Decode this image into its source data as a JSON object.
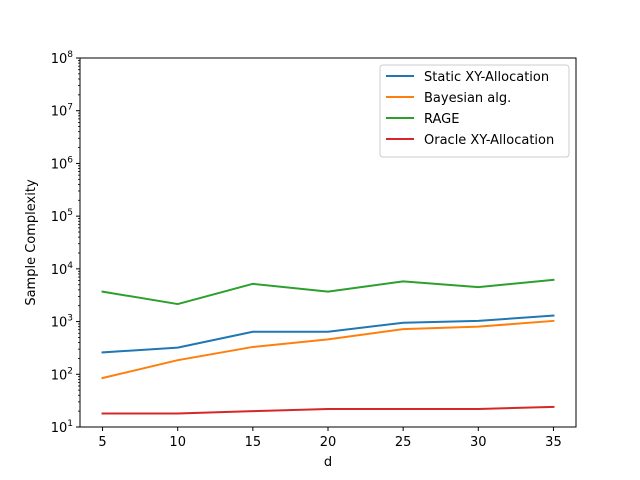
{
  "chart_data": {
    "type": "line",
    "xlabel": "d",
    "ylabel": "Sample Complexity",
    "yscale": "log",
    "x": [
      5,
      10,
      15,
      20,
      25,
      30,
      35
    ],
    "xticks": [
      "5",
      "10",
      "15",
      "20",
      "25",
      "30",
      "35"
    ],
    "xlim": [
      3.5,
      36.5
    ],
    "ylim": [
      10,
      100000000
    ],
    "yticks": [
      {
        "base": "10",
        "exp": "1"
      },
      {
        "base": "10",
        "exp": "2"
      },
      {
        "base": "10",
        "exp": "3"
      },
      {
        "base": "10",
        "exp": "4"
      },
      {
        "base": "10",
        "exp": "5"
      },
      {
        "base": "10",
        "exp": "6"
      },
      {
        "base": "10",
        "exp": "7"
      },
      {
        "base": "10",
        "exp": "8"
      }
    ],
    "legend_position": "top-right",
    "grid": false,
    "series": [
      {
        "name": "Static XY-Allocation",
        "color": "#1f77b4",
        "values": [
          260,
          320,
          640,
          640,
          950,
          1030,
          1300
        ]
      },
      {
        "name": "Bayesian alg.",
        "color": "#ff7f0e",
        "values": [
          85,
          185,
          330,
          460,
          720,
          800,
          1030
        ]
      },
      {
        "name": "RAGE",
        "color": "#2ca02c",
        "values": [
          3700,
          2150,
          5200,
          3700,
          5800,
          4500,
          6200
        ]
      },
      {
        "name": "Oracle XY-Allocation",
        "color": "#d62728",
        "values": [
          18,
          18,
          20,
          22,
          22,
          22,
          24
        ]
      }
    ]
  }
}
